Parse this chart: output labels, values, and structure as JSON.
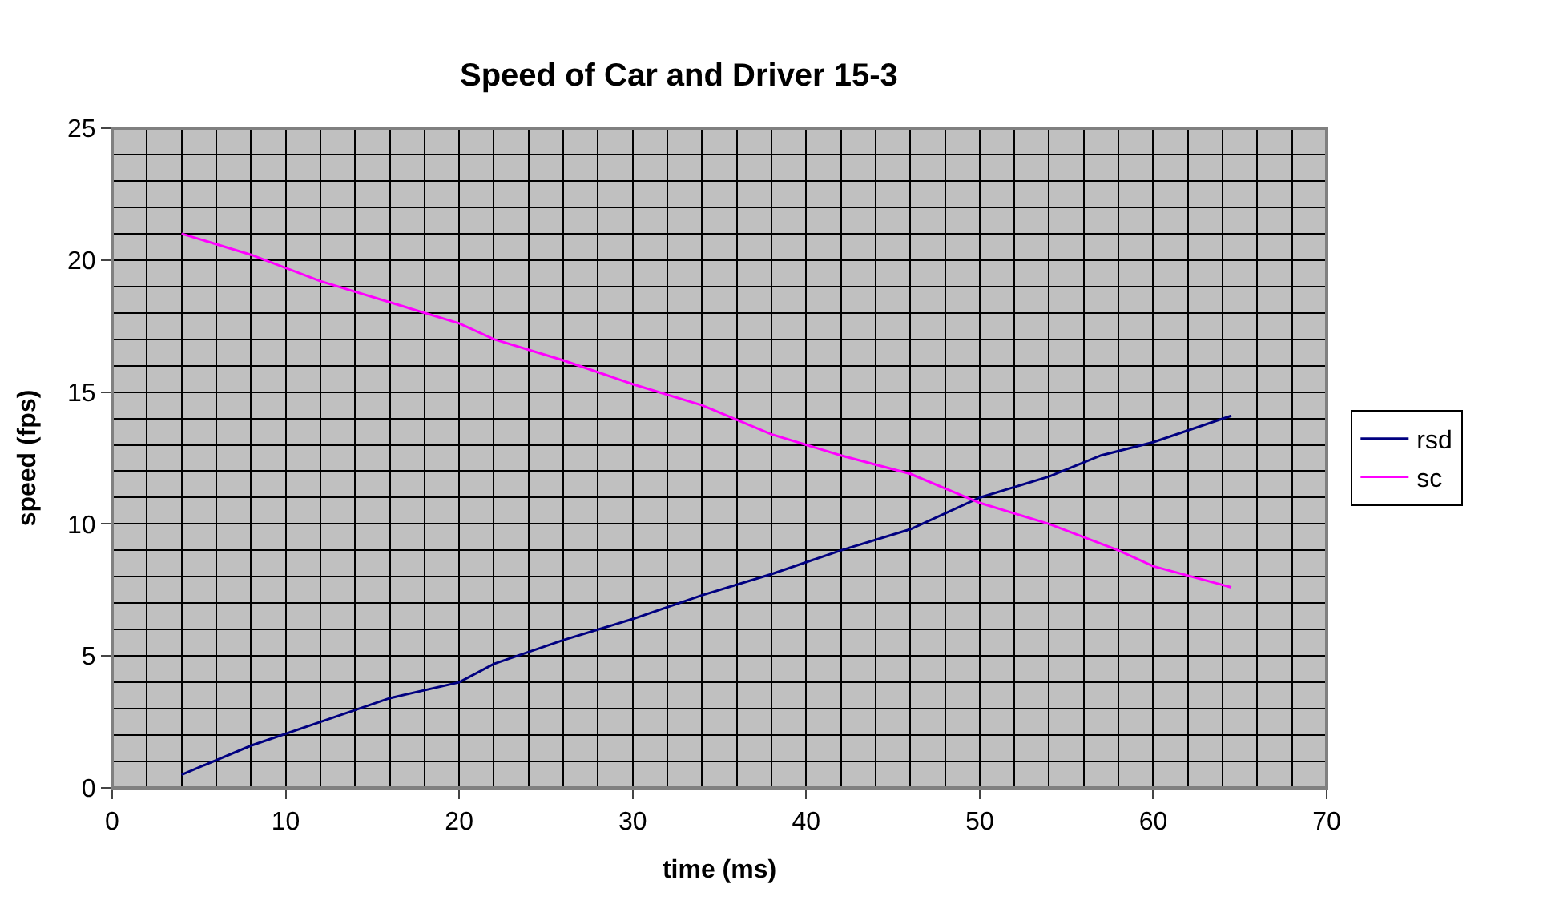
{
  "chart_data": {
    "type": "line",
    "title": "Speed of Car and Driver 15-3",
    "xlabel": "time (ms)",
    "ylabel": "speed (fps)",
    "xlim": [
      0,
      70
    ],
    "xticks": [
      0,
      10,
      20,
      30,
      40,
      50,
      60,
      70
    ],
    "ylim": [
      0,
      25
    ],
    "yticks": [
      0,
      5,
      10,
      15,
      20,
      25
    ],
    "grid": true,
    "legend": "right",
    "marker": "none",
    "line_style": "solid",
    "series": [
      {
        "name": "rsd",
        "color": "#000080",
        "x": [
          4,
          8,
          12,
          16,
          20,
          22,
          26,
          30,
          34,
          38,
          42,
          46,
          50,
          54,
          57,
          60,
          64.5
        ],
        "values": [
          0.5,
          1.6,
          2.5,
          3.4,
          4.0,
          4.7,
          5.6,
          6.4,
          7.3,
          8.1,
          9.0,
          9.8,
          11.0,
          11.8,
          12.6,
          13.1,
          14.1
        ]
      },
      {
        "name": "sc",
        "color": "#ff00ff",
        "x": [
          4,
          8,
          12,
          16,
          20,
          22,
          26,
          30,
          34,
          38,
          42,
          46,
          50,
          54,
          58,
          60,
          64.5
        ],
        "values": [
          21.0,
          20.2,
          19.2,
          18.4,
          17.6,
          17.0,
          16.2,
          15.3,
          14.5,
          13.4,
          12.6,
          11.9,
          10.8,
          10.0,
          9.0,
          8.4,
          7.6
        ]
      }
    ]
  }
}
